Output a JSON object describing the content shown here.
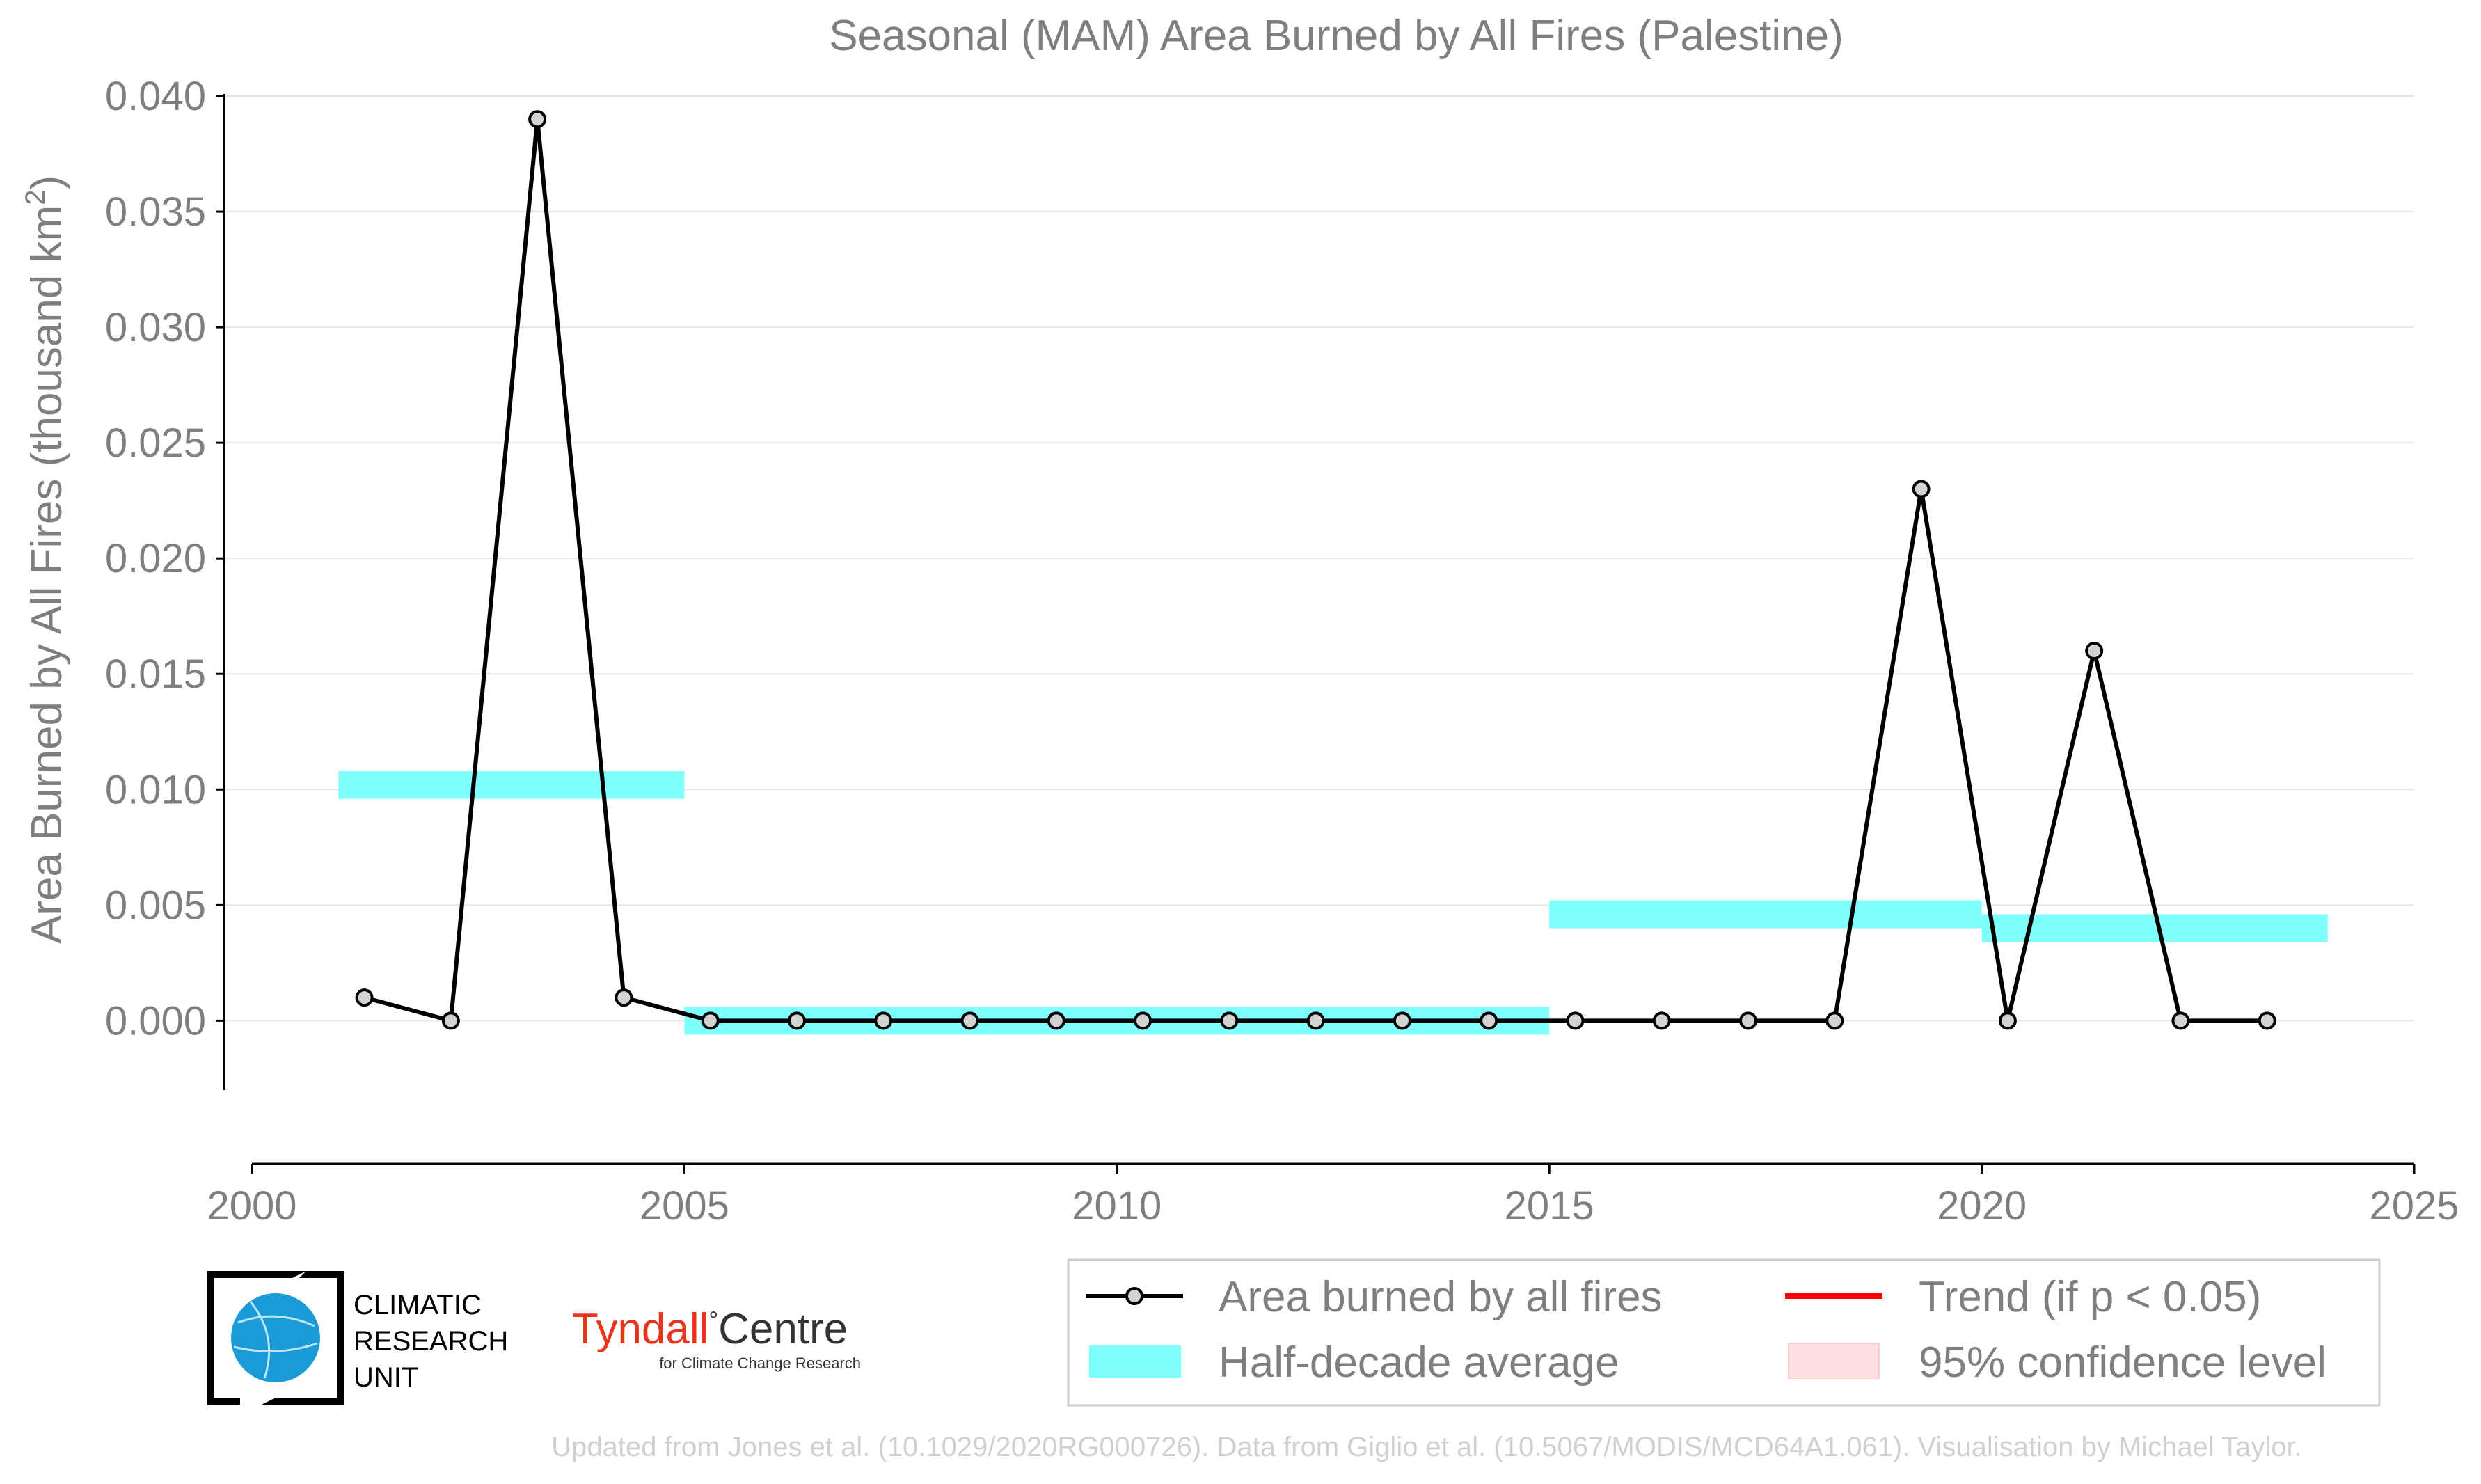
{
  "chart_data": {
    "type": "line",
    "title": "Seasonal (MAM) Area Burned by All Fires (Palestine)",
    "ylabel": "Area Burned by All Fires (thousand km",
    "ylabel_sup": "2",
    "ylabel_end": ")",
    "xlim": [
      2000,
      2025
    ],
    "ylim": [
      -0.003,
      0.04
    ],
    "x_ticks": [
      "2000",
      "2005",
      "2010",
      "2015",
      "2020",
      "2025"
    ],
    "y_ticks": [
      "0.000",
      "0.005",
      "0.010",
      "0.015",
      "0.020",
      "0.025",
      "0.030",
      "0.035",
      "0.040"
    ],
    "grid": true,
    "series": [
      {
        "name": "Area burned by all fires",
        "color": "#000000",
        "marker_fill": "#d3d3d3",
        "x": [
          2001.3,
          2002.3,
          2003.3,
          2004.3,
          2005.3,
          2006.3,
          2007.3,
          2008.3,
          2009.3,
          2010.3,
          2011.3,
          2012.3,
          2013.3,
          2014.3,
          2015.3,
          2016.3,
          2017.3,
          2018.3,
          2019.3,
          2020.3,
          2021.3,
          2022.3,
          2023.3
        ],
        "values": [
          0.001,
          0.0,
          0.039,
          0.001,
          0.0,
          0.0,
          0.0,
          0.0,
          0.0,
          0.0,
          0.0,
          0.0,
          0.0,
          0.0,
          0.0,
          0.0,
          0.0,
          0.0,
          0.023,
          0.0,
          0.016,
          0.0,
          0.0
        ]
      }
    ],
    "half_decade_average": {
      "name": "Half-decade average",
      "color": "#80ffff",
      "segments": [
        {
          "x0": 2001,
          "x1": 2005,
          "value": 0.0102
        },
        {
          "x0": 2005,
          "x1": 2015,
          "value": 0.0
        },
        {
          "x0": 2015,
          "x1": 2020,
          "value": 0.0046
        },
        {
          "x0": 2020,
          "x1": 2024,
          "value": 0.004
        }
      ]
    },
    "legend": {
      "placement": "bottom-right",
      "items": [
        {
          "label": "Area burned by all fires",
          "kind": "line-marker",
          "color": "#000000"
        },
        {
          "label": "Trend (if p < 0.05)",
          "kind": "line",
          "color": "#ff0000"
        },
        {
          "label": "Half-decade average",
          "kind": "band",
          "color": "#80ffff"
        },
        {
          "label": "95% confidence level",
          "kind": "band",
          "color": "#ffe0e0"
        }
      ]
    }
  },
  "logos": {
    "cru_lines": [
      "CLIMATIC",
      "RESEARCH",
      "UNIT"
    ],
    "tyndall_main_a": "Tyndall",
    "tyndall_degree": "°",
    "tyndall_main_b": "Centre",
    "tyndall_sub": "for Climate Change Research"
  },
  "footer": "Updated from Jones et al. (10.1029/2020RG000726). Data from Giglio et al. (10.5067/MODIS/MCD64A1.061). Visualisation by Michael Taylor.",
  "colors": {
    "cru_blue": "#1a9ad6",
    "tyndall_red": "#e8341c"
  }
}
